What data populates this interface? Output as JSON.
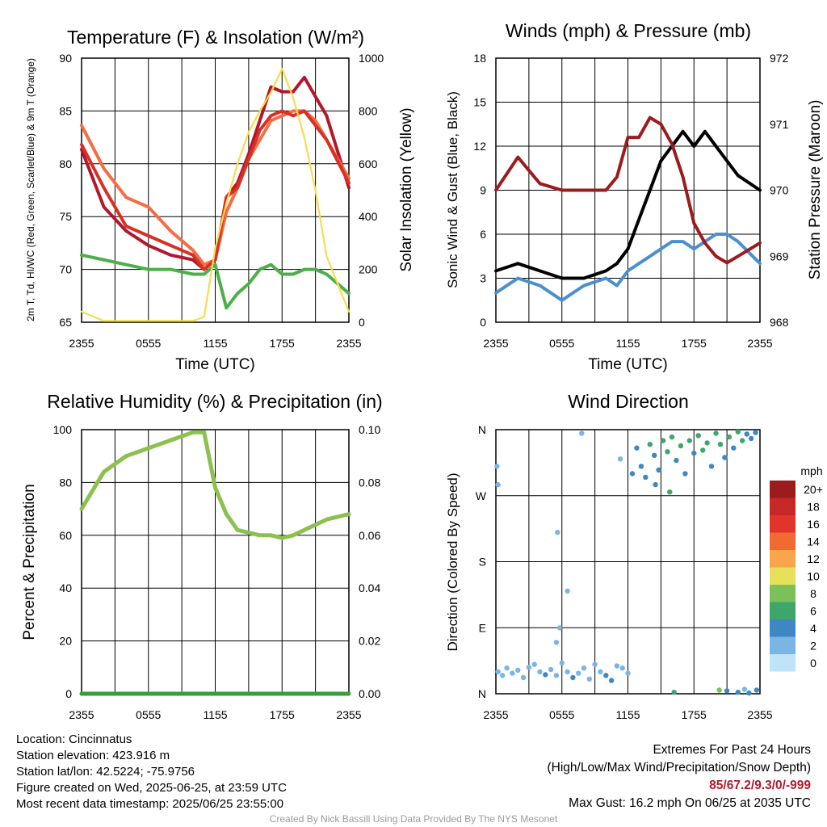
{
  "chart_data": [
    {
      "type": "line",
      "title": "Temperature (F) & Insolation (W/m²)",
      "xlabel": "Time (UTC)",
      "ylabel": "2m T, Td, HI/WC (Red, Green, Scarlet/Blue) & 9m T (Orange)",
      "ylabel_right": "Solar Insolation (Yellow)",
      "x_ticks": [
        "2355",
        "0555",
        "1155",
        "1755",
        "2355"
      ],
      "y_ticks": [
        "65",
        "70",
        "75",
        "80",
        "85",
        "90"
      ],
      "y2_ticks": [
        "0",
        "200",
        "400",
        "600",
        "800",
        "1000"
      ],
      "ylim": [
        63,
        90.5
      ],
      "y2lim": [
        0,
        1000
      ],
      "x": [
        "2355",
        "0155",
        "0355",
        "0555",
        "0755",
        "0955",
        "1055",
        "1155",
        "1255",
        "1355",
        "1455",
        "1555",
        "1655",
        "1755",
        "1855",
        "1955",
        "2055",
        "2155",
        "2355"
      ],
      "series": [
        {
          "color": "#b2182b",
          "values": [
            81,
            75,
            72.5,
            71,
            70,
            69.5,
            68.5,
            69.5,
            76,
            77.5,
            80.5,
            84,
            87.5,
            87,
            87,
            88.5,
            86.5,
            84.5,
            77
          ]
        },
        {
          "color": "#f46d43",
          "values": [
            83.5,
            79,
            76,
            75,
            72.5,
            70.5,
            69,
            69.5,
            74.5,
            77,
            80,
            82,
            84,
            84.5,
            85,
            85,
            84,
            82,
            78
          ]
        },
        {
          "color": "#d73027",
          "values": [
            81.5,
            77,
            73,
            72,
            71,
            70,
            68.5,
            69.5,
            76,
            77,
            80,
            83,
            84.5,
            85,
            84.5,
            85,
            83.5,
            82,
            77.5
          ]
        },
        {
          "color": "#4daf4a",
          "values": [
            70,
            69.5,
            69,
            68.5,
            68.5,
            68,
            68,
            69,
            64.5,
            66,
            67,
            68.5,
            69,
            68,
            68,
            68.5,
            68.5,
            68,
            66
          ]
        },
        {
          "color": "#f7dc4f",
          "axis": "right",
          "values": [
            40,
            5,
            5,
            5,
            5,
            5,
            20,
            280,
            450,
            600,
            720,
            800,
            870,
            960,
            850,
            700,
            500,
            250,
            40
          ]
        }
      ]
    },
    {
      "type": "line",
      "title": "Winds (mph) & Pressure (mb)",
      "xlabel": "Time (UTC)",
      "ylabel": "Sonic Wind & Gust (Blue, Black)",
      "ylabel_right": "Station Pressure (Maroon)",
      "x_ticks": [
        "2355",
        "0555",
        "1155",
        "1755",
        "2355"
      ],
      "y_ticks": [
        "0",
        "3",
        "6",
        "9",
        "12",
        "15",
        "18"
      ],
      "y2_ticks": [
        "968",
        "969",
        "970",
        "971",
        "972"
      ],
      "ylim": [
        0,
        18
      ],
      "y2lim": [
        968,
        972
      ],
      "x": [
        "2355",
        "0155",
        "0355",
        "0555",
        "0755",
        "0955",
        "1055",
        "1155",
        "1255",
        "1355",
        "1455",
        "1555",
        "1655",
        "1755",
        "1855",
        "1955",
        "2055",
        "2155",
        "2355"
      ],
      "series": [
        {
          "color": "#4a90d0",
          "values": [
            2,
            3,
            2.5,
            1.5,
            2.5,
            3,
            2.5,
            3.5,
            4,
            4.5,
            5,
            5.5,
            5.5,
            5,
            5.5,
            6,
            6,
            5.5,
            4
          ]
        },
        {
          "color": "#000000",
          "values": [
            3.5,
            4,
            3.5,
            3,
            3,
            3.5,
            4,
            5,
            7,
            9,
            11,
            12,
            13,
            12,
            13,
            12,
            11,
            10,
            9
          ]
        },
        {
          "color": "#9b1c1c",
          "axis": "right",
          "values": [
            970,
            970.5,
            970.1,
            970,
            970,
            970,
            970.2,
            970.8,
            970.8,
            971.1,
            971,
            970.7,
            970.2,
            969.5,
            969.2,
            969,
            968.9,
            969,
            969.2
          ]
        }
      ]
    },
    {
      "type": "line",
      "title": "Relative Humidity (%) & Precipitation (in)",
      "ylabel": "Percent & Precipitation",
      "x_ticks": [
        "2355",
        "0555",
        "1155",
        "1755",
        "2355"
      ],
      "y_ticks": [
        "0",
        "20",
        "40",
        "60",
        "80",
        "100"
      ],
      "y2_ticks": [
        "0.00",
        "0.02",
        "0.04",
        "0.06",
        "0.08",
        "0.10"
      ],
      "ylim": [
        0,
        100
      ],
      "y2lim": [
        0,
        0.1
      ],
      "x": [
        "2355",
        "0155",
        "0355",
        "0555",
        "0755",
        "0955",
        "1055",
        "1155",
        "1255",
        "1355",
        "1455",
        "1555",
        "1655",
        "1755",
        "1855",
        "1955",
        "2055",
        "2155",
        "2355"
      ],
      "series": [
        {
          "color": "#8cc04f",
          "values": [
            70,
            84,
            90,
            93,
            96,
            99,
            99,
            78,
            68,
            62,
            61,
            60,
            60,
            59,
            60,
            62,
            64,
            66,
            68
          ]
        },
        {
          "color": "#3a9c3a",
          "axis": "right",
          "values": [
            0,
            0,
            0,
            0,
            0,
            0,
            0,
            0,
            0,
            0,
            0,
            0,
            0,
            0,
            0,
            0,
            0,
            0,
            0
          ]
        }
      ]
    },
    {
      "type": "scatter",
      "title": "Wind Direction",
      "ylabel": "Direction (Colored By Speed)",
      "x_ticks": [
        "2355",
        "0555",
        "1155",
        "1755",
        "2355"
      ],
      "y_ticks": [
        "N",
        "E",
        "S",
        "W",
        "N"
      ],
      "ylim": [
        0,
        360
      ],
      "legend_title": "mph",
      "legend_labels": [
        "20+",
        "18",
        "16",
        "14",
        "12",
        "10",
        "8",
        "6",
        "4",
        "2",
        "0"
      ],
      "legend_colors": [
        "#9b1c1c",
        "#c62828",
        "#e0342c",
        "#f26a31",
        "#f9a64a",
        "#e6e05a",
        "#7cc05a",
        "#3fa66b",
        "#3f86c4",
        "#79b6e4",
        "#bfe3f7"
      ],
      "points": [
        {
          "x": 0.2,
          "y": 30,
          "s": 2
        },
        {
          "x": 0.6,
          "y": 25,
          "s": 2
        },
        {
          "x": 1.0,
          "y": 35,
          "s": 2
        },
        {
          "x": 1.5,
          "y": 28,
          "s": 2
        },
        {
          "x": 2.0,
          "y": 32,
          "s": 2
        },
        {
          "x": 2.5,
          "y": 22,
          "s": 1
        },
        {
          "x": 3.0,
          "y": 36,
          "s": 2
        },
        {
          "x": 3.5,
          "y": 40,
          "s": 2
        },
        {
          "x": 4.0,
          "y": 30,
          "s": 2
        },
        {
          "x": 4.5,
          "y": 26,
          "s": 3
        },
        {
          "x": 5.0,
          "y": 33,
          "s": 2
        },
        {
          "x": 5.5,
          "y": 25,
          "s": 1
        },
        {
          "x": 6.0,
          "y": 42,
          "s": 2
        },
        {
          "x": 6.5,
          "y": 30,
          "s": 2
        },
        {
          "x": 7.0,
          "y": 22,
          "s": 3
        },
        {
          "x": 7.5,
          "y": 28,
          "s": 2
        },
        {
          "x": 8.0,
          "y": 35,
          "s": 2
        },
        {
          "x": 8.5,
          "y": 20,
          "s": 2
        },
        {
          "x": 9.0,
          "y": 40,
          "s": 1
        },
        {
          "x": 9.5,
          "y": 30,
          "s": 2
        },
        {
          "x": 10.0,
          "y": 25,
          "s": 3
        },
        {
          "x": 10.5,
          "y": 18,
          "s": 4
        },
        {
          "x": 11.0,
          "y": 38,
          "s": 2
        },
        {
          "x": 11.5,
          "y": 35,
          "s": 1
        },
        {
          "x": 12.0,
          "y": 28,
          "s": 2
        },
        {
          "x": 5.5,
          "y": 70,
          "s": 1
        },
        {
          "x": 5.8,
          "y": 90,
          "s": 1
        },
        {
          "x": 6.5,
          "y": 140,
          "s": 1
        },
        {
          "x": 5.6,
          "y": 220,
          "s": 1
        },
        {
          "x": 0.2,
          "y": 285,
          "s": 1
        },
        {
          "x": 0.1,
          "y": 310,
          "s": 2
        },
        {
          "x": 7.8,
          "y": 355,
          "s": 1
        },
        {
          "x": 11.3,
          "y": 320,
          "s": 2
        },
        {
          "x": 12.4,
          "y": 300,
          "s": 3
        },
        {
          "x": 12.8,
          "y": 335,
          "s": 4
        },
        {
          "x": 13.2,
          "y": 310,
          "s": 3
        },
        {
          "x": 13.6,
          "y": 295,
          "s": 4
        },
        {
          "x": 14.0,
          "y": 340,
          "s": 5
        },
        {
          "x": 14.4,
          "y": 325,
          "s": 4
        },
        {
          "x": 14.8,
          "y": 305,
          "s": 3
        },
        {
          "x": 15.2,
          "y": 345,
          "s": 6
        },
        {
          "x": 15.6,
          "y": 330,
          "s": 5
        },
        {
          "x": 16.0,
          "y": 350,
          "s": 6
        },
        {
          "x": 16.4,
          "y": 318,
          "s": 4
        },
        {
          "x": 16.8,
          "y": 338,
          "s": 6
        },
        {
          "x": 17.2,
          "y": 300,
          "s": 3
        },
        {
          "x": 17.6,
          "y": 345,
          "s": 5
        },
        {
          "x": 18.0,
          "y": 328,
          "s": 4
        },
        {
          "x": 18.4,
          "y": 352,
          "s": 6
        },
        {
          "x": 18.8,
          "y": 332,
          "s": 5
        },
        {
          "x": 19.2,
          "y": 342,
          "s": 6
        },
        {
          "x": 19.6,
          "y": 310,
          "s": 4
        },
        {
          "x": 20.0,
          "y": 355,
          "s": 5
        },
        {
          "x": 20.4,
          "y": 340,
          "s": 6
        },
        {
          "x": 20.8,
          "y": 322,
          "s": 4
        },
        {
          "x": 21.2,
          "y": 350,
          "s": 5
        },
        {
          "x": 21.6,
          "y": 335,
          "s": 4
        },
        {
          "x": 22.0,
          "y": 357,
          "s": 5
        },
        {
          "x": 22.4,
          "y": 345,
          "s": 6
        },
        {
          "x": 22.8,
          "y": 354,
          "s": 4
        },
        {
          "x": 23.2,
          "y": 348,
          "s": 3
        },
        {
          "x": 23.6,
          "y": 356,
          "s": 4
        },
        {
          "x": 16.2,
          "y": 2,
          "s": 6
        },
        {
          "x": 20.3,
          "y": 5,
          "s": 7
        },
        {
          "x": 21.0,
          "y": 4,
          "s": 4
        },
        {
          "x": 22.0,
          "y": 2,
          "s": 3
        },
        {
          "x": 22.6,
          "y": 6,
          "s": 2
        },
        {
          "x": 23.0,
          "y": 1,
          "s": 3
        },
        {
          "x": 23.7,
          "y": 5,
          "s": 4
        },
        {
          "x": 15.8,
          "y": 275,
          "s": 6
        },
        {
          "x": 14.5,
          "y": 285,
          "s": 3
        }
      ]
    }
  ],
  "info": {
    "location": "Location: Cincinnatus",
    "elevation": "Station elevation: 423.916 m",
    "latlon": "Station lat/lon: 42.5224; -75.9756",
    "created": "Figure created on Wed, 2025-06-25, at 23:59 UTC",
    "recent": "Most recent data timestamp: 2025/06/25 23:55:00"
  },
  "extremes": {
    "title": "Extremes For Past 24 Hours",
    "subtitle": "(High/Low/Max Wind/Precipitation/Snow Depth)",
    "values": "85/67.2/9.3/0/-999",
    "max_gust": "Max Gust: 16.2 mph On 06/25 at 2035 UTC"
  },
  "credit": "Created By Nick Bassill Using Data Provided By The NYS Mesonet"
}
